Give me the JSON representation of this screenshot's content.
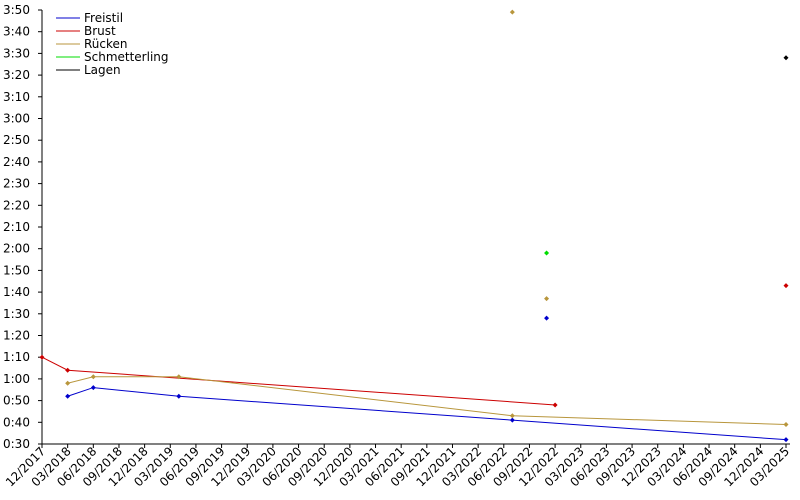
{
  "chart_data": {
    "type": "line",
    "xlim": [
      "2017-12",
      "2025-03"
    ],
    "xticks": [
      {
        "value": "2017-12",
        "label": "12/2017"
      },
      {
        "value": "2018-03",
        "label": "03/2018"
      },
      {
        "value": "2018-06",
        "label": "06/2018"
      },
      {
        "value": "2018-09",
        "label": "09/2018"
      },
      {
        "value": "2018-12",
        "label": "12/2018"
      },
      {
        "value": "2019-03",
        "label": "03/2019"
      },
      {
        "value": "2019-06",
        "label": "06/2019"
      },
      {
        "value": "2019-09",
        "label": "09/2019"
      },
      {
        "value": "2019-12",
        "label": "12/2019"
      },
      {
        "value": "2020-03",
        "label": "03/2020"
      },
      {
        "value": "2020-06",
        "label": "06/2020"
      },
      {
        "value": "2020-09",
        "label": "09/2020"
      },
      {
        "value": "2020-12",
        "label": "12/2020"
      },
      {
        "value": "2021-03",
        "label": "03/2021"
      },
      {
        "value": "2021-06",
        "label": "06/2021"
      },
      {
        "value": "2021-09",
        "label": "09/2021"
      },
      {
        "value": "2021-12",
        "label": "12/2021"
      },
      {
        "value": "2022-03",
        "label": "03/2022"
      },
      {
        "value": "2022-06",
        "label": "06/2022"
      },
      {
        "value": "2022-09",
        "label": "09/2022"
      },
      {
        "value": "2022-12",
        "label": "12/2022"
      },
      {
        "value": "2023-03",
        "label": "03/2023"
      },
      {
        "value": "2023-06",
        "label": "06/2023"
      },
      {
        "value": "2023-09",
        "label": "09/2023"
      },
      {
        "value": "2023-12",
        "label": "12/2023"
      },
      {
        "value": "2024-03",
        "label": "03/2024"
      },
      {
        "value": "2024-06",
        "label": "06/2024"
      },
      {
        "value": "2024-09",
        "label": "09/2024"
      },
      {
        "value": "2024-12",
        "label": "12/2024"
      },
      {
        "value": "2025-03",
        "label": "03/2025"
      }
    ],
    "ylim": [
      30,
      230
    ],
    "yticks": [
      {
        "value": 30,
        "label": "0:30"
      },
      {
        "value": 40,
        "label": "0:40"
      },
      {
        "value": 50,
        "label": "0:50"
      },
      {
        "value": 60,
        "label": "1:00"
      },
      {
        "value": 70,
        "label": "1:10"
      },
      {
        "value": 80,
        "label": "1:20"
      },
      {
        "value": 90,
        "label": "1:30"
      },
      {
        "value": 100,
        "label": "1:40"
      },
      {
        "value": 110,
        "label": "1:50"
      },
      {
        "value": 120,
        "label": "2:00"
      },
      {
        "value": 130,
        "label": "2:10"
      },
      {
        "value": 140,
        "label": "2:20"
      },
      {
        "value": 150,
        "label": "2:30"
      },
      {
        "value": 160,
        "label": "2:40"
      },
      {
        "value": 170,
        "label": "2:50"
      },
      {
        "value": 180,
        "label": "3:00"
      },
      {
        "value": 190,
        "label": "3:10"
      },
      {
        "value": 200,
        "label": "3:20"
      },
      {
        "value": 210,
        "label": "3:30"
      },
      {
        "value": 220,
        "label": "3:40"
      },
      {
        "value": 230,
        "label": "3:50"
      }
    ],
    "series": [
      {
        "name": "Freistil",
        "color": "#0000cc",
        "x": [
          "2018-03",
          "2018-06",
          "2019-04",
          "2022-07",
          "2025-03"
        ],
        "values": [
          52,
          56,
          52,
          41,
          32
        ],
        "points": {
          "x": [
            "2022-11"
          ],
          "values": [
            88
          ]
        }
      },
      {
        "name": "Brust",
        "color": "#cc0000",
        "x": [
          "2017-12",
          "2018-03",
          "2022-12"
        ],
        "values": [
          70,
          64,
          48
        ],
        "points": {
          "x": [
            "2025-03"
          ],
          "values": [
            103
          ]
        }
      },
      {
        "name": "Rücken",
        "color": "#b8963c",
        "x": [
          "2018-03",
          "2018-06",
          "2019-04",
          "2022-07",
          "2025-03"
        ],
        "values": [
          58,
          61,
          61,
          43,
          39
        ],
        "points": {
          "x": [
            "2022-07",
            "2022-11"
          ],
          "values": [
            229,
            97
          ]
        }
      },
      {
        "name": "Schmetterling",
        "color": "#00dd00",
        "x": [],
        "values": [],
        "points": {
          "x": [
            "2022-11"
          ],
          "values": [
            118
          ]
        }
      },
      {
        "name": "Lagen",
        "color": "#000000",
        "x": [],
        "values": [],
        "points": {
          "x": [
            "2025-03"
          ],
          "values": [
            208
          ]
        }
      }
    ]
  }
}
